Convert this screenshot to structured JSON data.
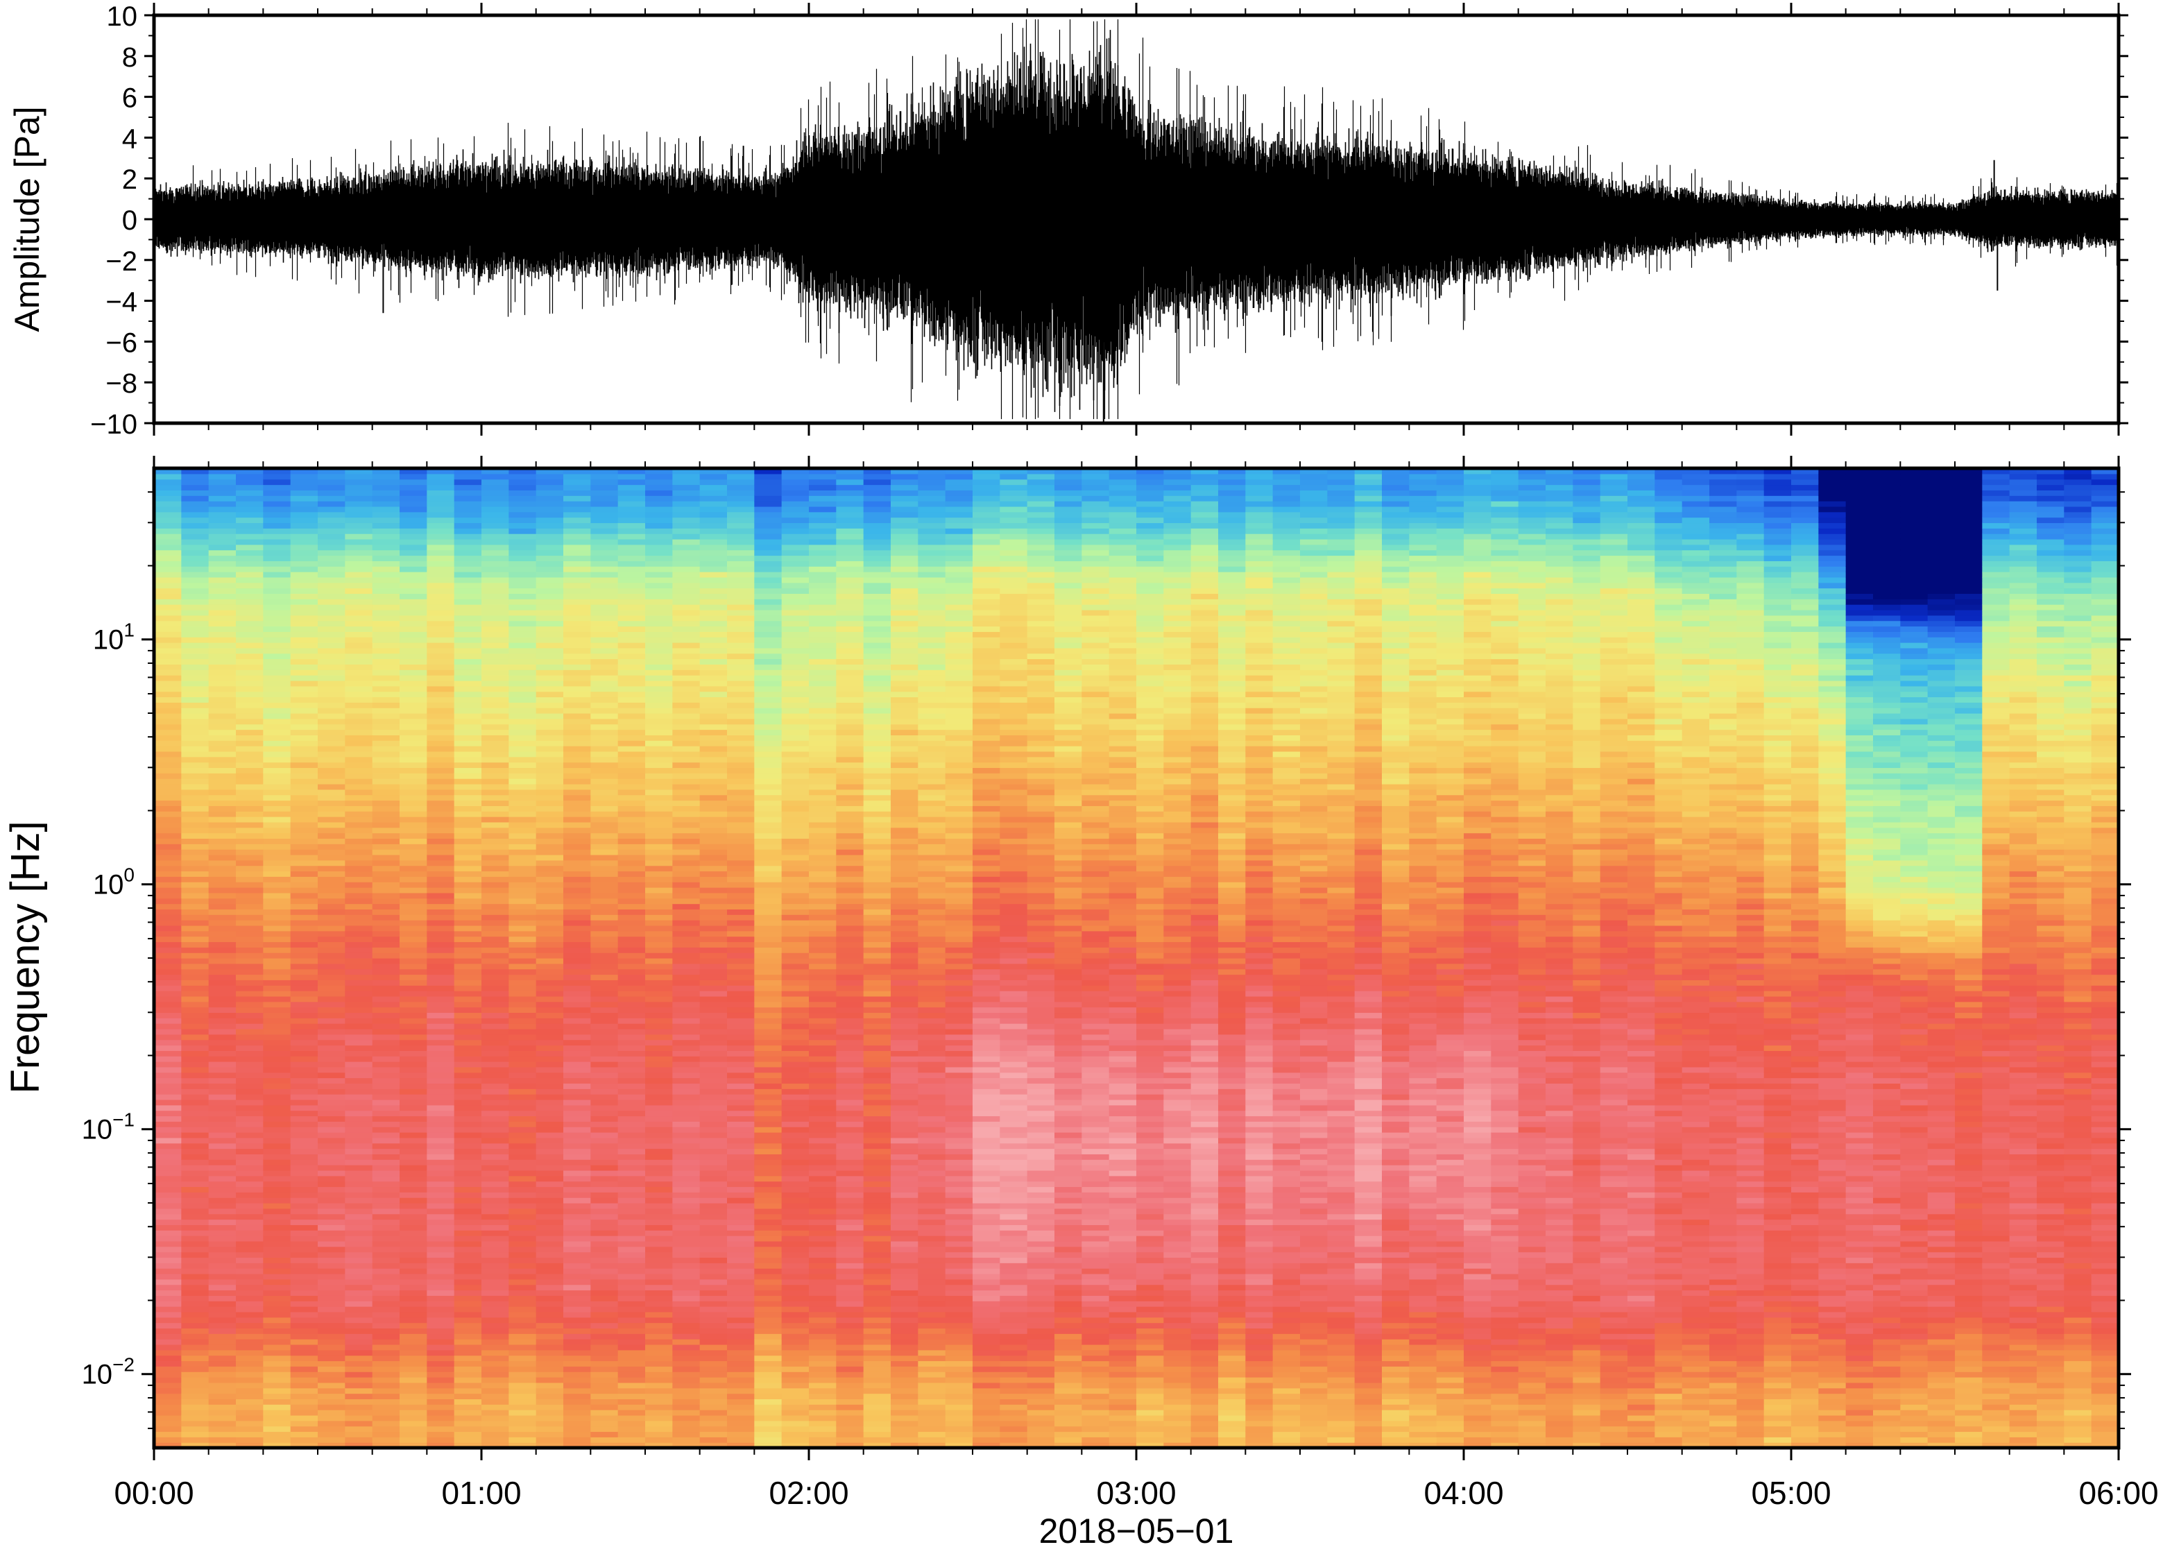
{
  "chart_data": [
    {
      "type": "line",
      "ylabel": "Amplitude [Pa]",
      "ylim": [
        -10,
        10
      ],
      "yticks": [
        10,
        8,
        6,
        4,
        2,
        0,
        -2,
        -4,
        -6,
        -8,
        -10
      ],
      "ytick_labels": [
        "10",
        "8",
        "6",
        "4",
        "2",
        "0",
        "−2",
        "−4",
        "−6",
        "−8",
        "−10"
      ],
      "xlim_hours": [
        0,
        6
      ],
      "color": "#000000",
      "envelope": {
        "t_hours": [
          0,
          0.5,
          0.75,
          1.0,
          1.5,
          1.9,
          2.0,
          2.25,
          2.5,
          2.75,
          2.95,
          3.0,
          3.25,
          3.5,
          3.75,
          4.0,
          4.25,
          4.5,
          4.75,
          5.0,
          5.25,
          5.5,
          5.6,
          5.75,
          6.0
        ],
        "amplitude": [
          1.0,
          1.2,
          1.6,
          1.9,
          1.7,
          1.4,
          2.6,
          3.1,
          4.6,
          5.2,
          5.0,
          3.5,
          2.9,
          2.6,
          2.4,
          2.1,
          1.7,
          1.2,
          0.9,
          0.6,
          0.5,
          0.5,
          0.9,
          0.9,
          0.9
        ]
      },
      "spikes": [
        {
          "t_hours": 2.71,
          "value": 8.0
        },
        {
          "t_hours": 2.78,
          "value": 7.6
        },
        {
          "t_hours": 2.9,
          "value": -10.0
        },
        {
          "t_hours": 2.66,
          "value": -7.1
        },
        {
          "t_hours": 0.7,
          "value": -4.6
        },
        {
          "t_hours": 1.8,
          "value": 3.6
        },
        {
          "t_hours": 5.62,
          "value": 2.9
        },
        {
          "t_hours": 5.63,
          "value": -3.5
        }
      ]
    },
    {
      "type": "heatmap",
      "ylabel": "Frequency [Hz]",
      "yscale": "log",
      "ylim": [
        0.005,
        50
      ],
      "ytick_labels": [
        {
          "base": "10",
          "exp": "−2"
        },
        {
          "base": "10",
          "exp": "−1"
        },
        {
          "base": "10",
          "exp": "0"
        },
        {
          "base": "10",
          "exp": "1"
        }
      ],
      "ytick_values": [
        0.01,
        0.1,
        1,
        10
      ],
      "colormap": "rainbow (dark blue = low power, pink/white = high power)",
      "colormap_stops": [
        "#000a7a",
        "#0a2cc8",
        "#2f7df0",
        "#3bb6ea",
        "#74e0c8",
        "#bff59e",
        "#f2ea78",
        "#f8c35a",
        "#f5904a",
        "#ef5a4c",
        "#f0737a",
        "#f7a8ac"
      ],
      "features": [
        {
          "t_hours": [
            2.3,
            3.9
          ],
          "freq_hz": [
            0.02,
            0.3
          ],
          "level": "highest (pink)"
        },
        {
          "t_hours": [
            5.1,
            5.6
          ],
          "freq_hz": [
            0.4,
            50
          ],
          "level": "lowest (blue)"
        }
      ]
    }
  ],
  "xaxis": {
    "tick_labels": [
      "00:00",
      "01:00",
      "02:00",
      "03:00",
      "04:00",
      "05:00",
      "06:00"
    ],
    "date_label": "2018−05−01"
  }
}
